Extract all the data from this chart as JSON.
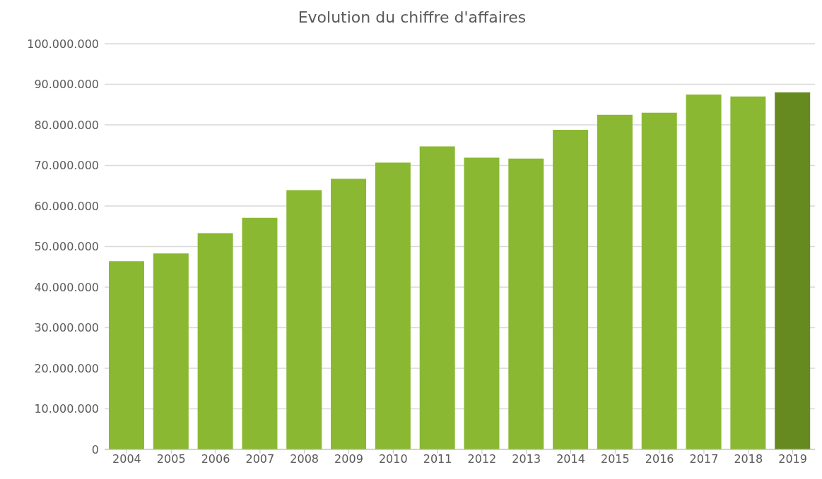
{
  "chart_data": {
    "type": "bar",
    "title": "Evolution du chiffre d'affaires",
    "categories": [
      "2004",
      "2005",
      "2006",
      "2007",
      "2008",
      "2009",
      "2010",
      "2011",
      "2012",
      "2013",
      "2014",
      "2015",
      "2016",
      "2017",
      "2018",
      "2019"
    ],
    "values": [
      46400000,
      48300000,
      53300000,
      57100000,
      63900000,
      66700000,
      70700000,
      74700000,
      71900000,
      71700000,
      78800000,
      82500000,
      83000000,
      87500000,
      87000000,
      88000000
    ],
    "colors": [
      "#8ab833",
      "#8ab833",
      "#8ab833",
      "#8ab833",
      "#8ab833",
      "#8ab833",
      "#8ab833",
      "#8ab833",
      "#8ab833",
      "#8ab833",
      "#8ab833",
      "#8ab833",
      "#8ab833",
      "#8ab833",
      "#8ab833",
      "#678a20"
    ],
    "ylim": [
      0,
      100000000
    ],
    "yticks": [
      0,
      {
        "value": 10000000,
        "label": "10.000.000"
      },
      {
        "value": 20000000,
        "label": "20.000.000"
      },
      {
        "value": 30000000,
        "label": "30.000.000"
      },
      {
        "value": 40000000,
        "label": "40.000.000"
      },
      {
        "value": 50000000,
        "label": "50.000.000"
      },
      {
        "value": 60000000,
        "label": "60.000.000"
      },
      {
        "value": 70000000,
        "label": "70.000.000"
      },
      {
        "value": 80000000,
        "label": "80.000.000"
      },
      {
        "value": 90000000,
        "label": "90.000.000"
      },
      {
        "value": 100000000,
        "label": "100.000.000"
      }
    ],
    "grid": "y",
    "legend": false
  }
}
